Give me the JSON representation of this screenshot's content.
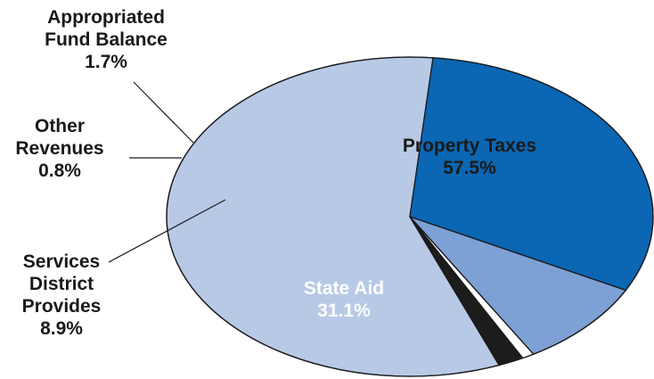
{
  "chart_data": {
    "type": "pie",
    "slices": [
      {
        "label_lines": [
          "Property Taxes"
        ],
        "value_label": "57.5%",
        "value": 57.5,
        "color": "#b8c9e6",
        "label_color": "#1a1a1a"
      },
      {
        "label_lines": [
          "State Aid"
        ],
        "value_label": "31.1%",
        "value": 31.1,
        "color": "#0b66b3",
        "label_color": "#ffffff"
      },
      {
        "label_lines": [
          "Services",
          "District",
          "Provides"
        ],
        "value_label": "8.9%",
        "value": 8.9,
        "color": "#7da1d5",
        "label_color": "#1a1a1a"
      },
      {
        "label_lines": [
          "Other",
          "Revenues"
        ],
        "value_label": "0.8%",
        "value": 0.8,
        "color": "#ffffff",
        "label_color": "#1a1a1a"
      },
      {
        "label_lines": [
          "Appropriated",
          "Fund Balance"
        ],
        "value_label": "1.7%",
        "value": 1.7,
        "color": "#1c1c1c",
        "label_color": "#1a1a1a"
      }
    ],
    "outline_color": "#1a1a1a",
    "legend": "none"
  }
}
